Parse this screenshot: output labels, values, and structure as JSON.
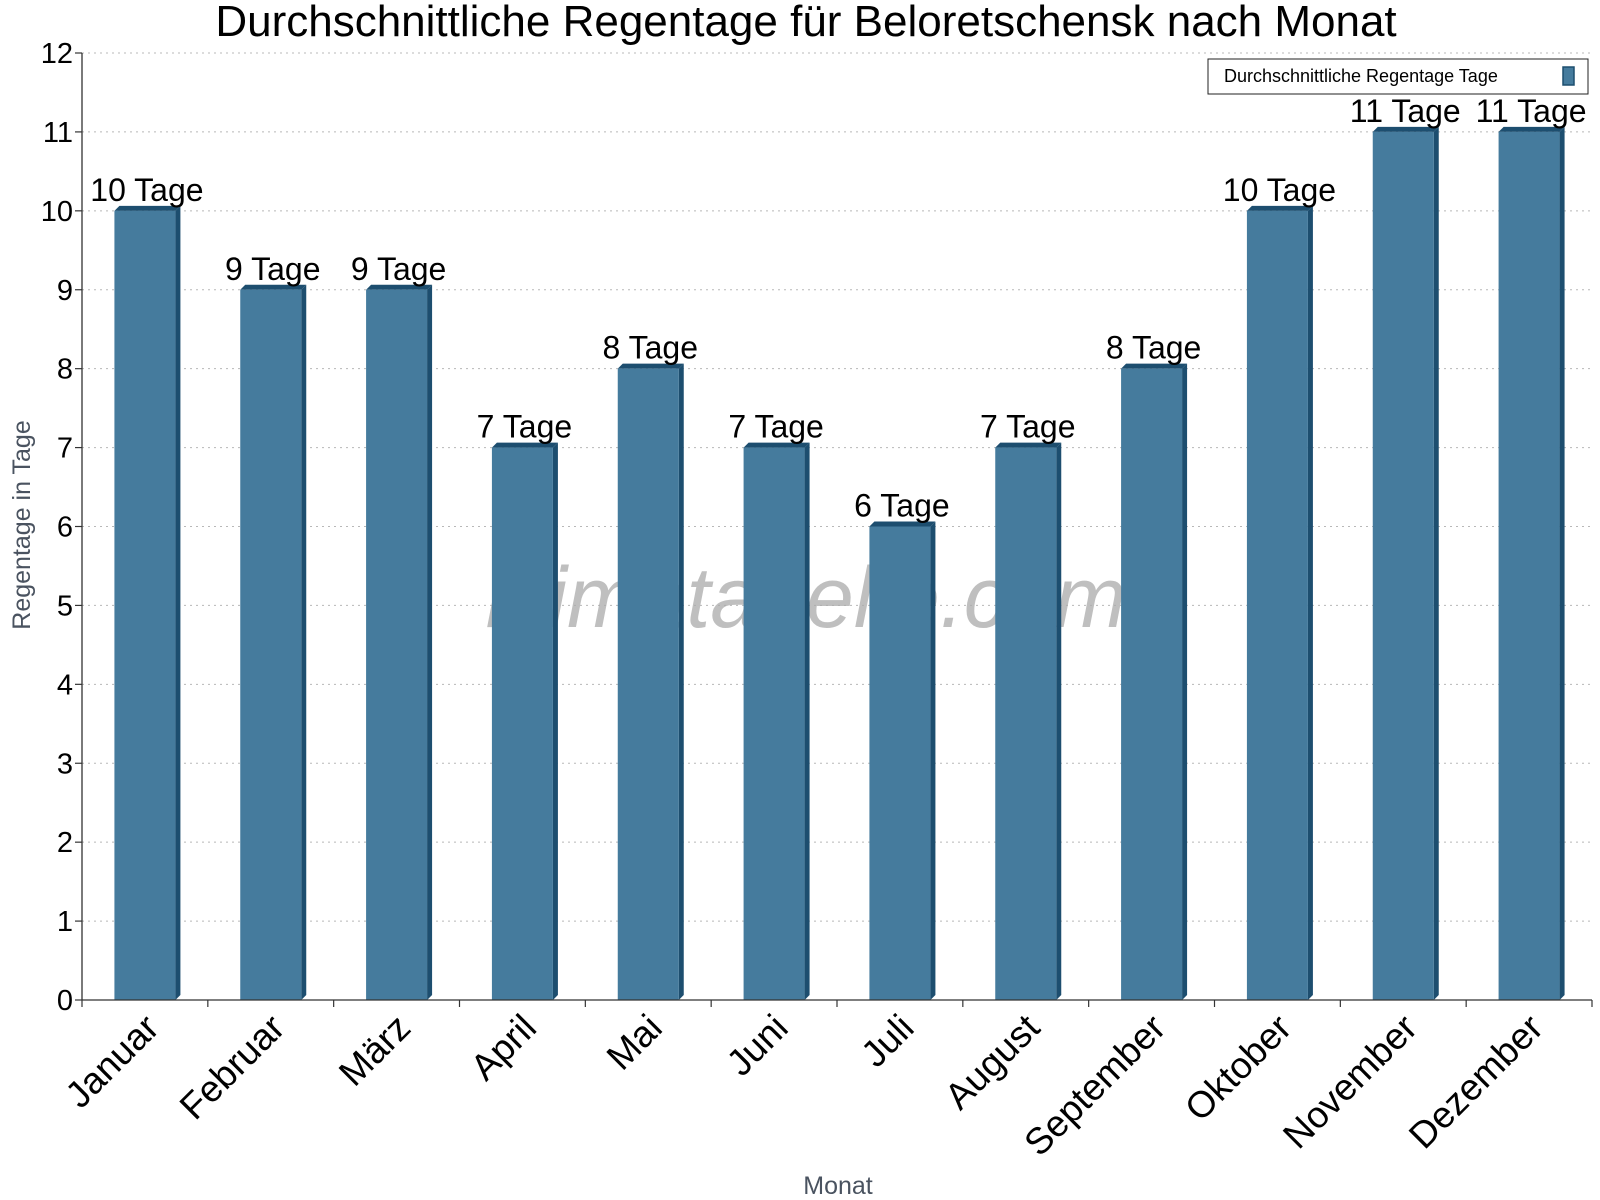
{
  "chart_data": {
    "type": "bar",
    "title": "Durchschnittliche Regentage für Beloretschensk nach Monat",
    "xlabel": "Monat",
    "ylabel": "Regentage in Tage",
    "ylim": [
      0,
      12
    ],
    "yticks": [
      0,
      1,
      2,
      3,
      4,
      5,
      6,
      7,
      8,
      9,
      10,
      11,
      12
    ],
    "grid": true,
    "legend_position": "top-right",
    "categories": [
      "Januar",
      "Februar",
      "März",
      "April",
      "Mai",
      "Juni",
      "Juli",
      "August",
      "September",
      "Oktober",
      "November",
      "Dezember"
    ],
    "series": [
      {
        "name": "Durchschnittliche Regentage Tage",
        "values": [
          10,
          9,
          9,
          7,
          8,
          7,
          6,
          7,
          8,
          10,
          11,
          11
        ],
        "labels": [
          "10 Tage",
          "9 Tage",
          "9 Tage",
          "7 Tage",
          "8 Tage",
          "7 Tage",
          "6 Tage",
          "7 Tage",
          "8 Tage",
          "10 Tage",
          "11 Tage",
          "11 Tage"
        ],
        "color": "#457b9d",
        "side_color": "#1d4e6f"
      }
    ],
    "watermark": "klimatabelle.com"
  }
}
